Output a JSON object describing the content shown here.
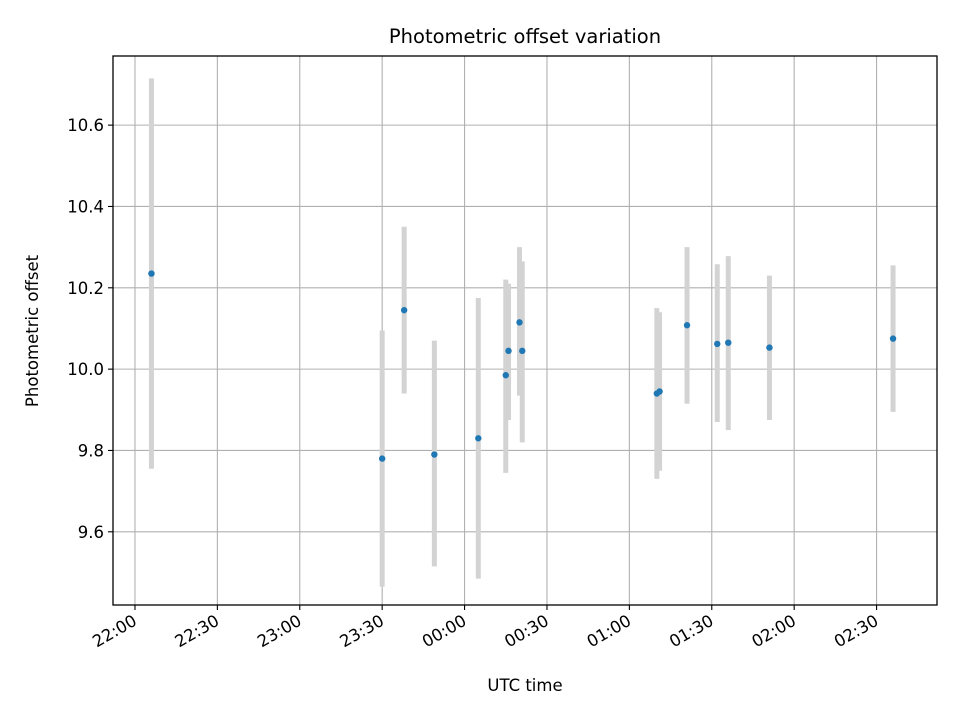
{
  "chart_data": {
    "type": "scatter",
    "title": "Photometric offset variation",
    "xlabel": "UTC time",
    "ylabel": "Photometric offset",
    "xlim": [
      "21:52",
      "02:52"
    ],
    "ylim": [
      9.42,
      10.77
    ],
    "x_ticks": [
      "22:00",
      "22:30",
      "23:00",
      "23:30",
      "00:00",
      "00:30",
      "01:00",
      "01:30",
      "02:00",
      "02:30"
    ],
    "y_ticks": [
      "9.6",
      "9.8",
      "10.0",
      "10.2",
      "10.4",
      "10.6"
    ],
    "grid": true,
    "marker_color": "#1f77b4",
    "errorbar_color": "#d3d3d3",
    "points": [
      {
        "time": "22:06",
        "y": 10.235,
        "low": 9.755,
        "high": 10.715
      },
      {
        "time": "23:30",
        "y": 9.78,
        "low": 9.465,
        "high": 10.095
      },
      {
        "time": "23:38",
        "y": 10.145,
        "low": 9.94,
        "high": 10.35
      },
      {
        "time": "23:49",
        "y": 9.79,
        "low": 9.515,
        "high": 10.07
      },
      {
        "time": "00:05",
        "y": 9.83,
        "low": 9.485,
        "high": 10.175
      },
      {
        "time": "00:15",
        "y": 9.985,
        "low": 9.745,
        "high": 10.22
      },
      {
        "time": "00:16",
        "y": 10.045,
        "low": 9.875,
        "high": 10.21
      },
      {
        "time": "00:20",
        "y": 10.115,
        "low": 9.935,
        "high": 10.3
      },
      {
        "time": "00:21",
        "y": 10.045,
        "low": 9.82,
        "high": 10.265
      },
      {
        "time": "01:10",
        "y": 9.94,
        "low": 9.73,
        "high": 10.15
      },
      {
        "time": "01:11",
        "y": 9.945,
        "low": 9.75,
        "high": 10.14
      },
      {
        "time": "01:21",
        "y": 10.108,
        "low": 9.915,
        "high": 10.3
      },
      {
        "time": "01:32",
        "y": 10.062,
        "low": 9.87,
        "high": 10.258
      },
      {
        "time": "01:36",
        "y": 10.065,
        "low": 9.85,
        "high": 10.278
      },
      {
        "time": "01:51",
        "y": 10.053,
        "low": 9.875,
        "high": 10.23
      },
      {
        "time": "02:36",
        "y": 10.075,
        "low": 9.895,
        "high": 10.255
      }
    ]
  }
}
